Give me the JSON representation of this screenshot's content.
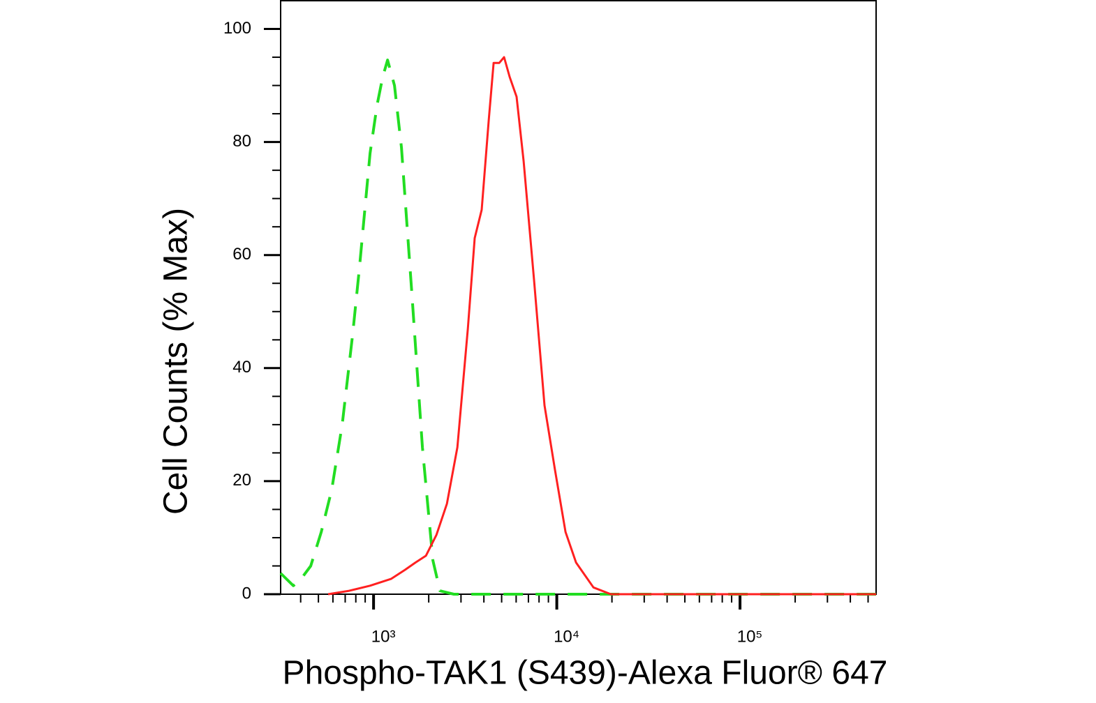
{
  "chart_data": {
    "type": "line",
    "xlabel": "Phospho-TAK1 (S439)-Alexa Fluor® 647",
    "ylabel": "Cell Counts (% Max)",
    "xscale": "log",
    "xlim": [
      311,
      553000
    ],
    "ylim": [
      0,
      105
    ],
    "xticks": [
      {
        "value": 1000,
        "label": "10³"
      },
      {
        "value": 10000,
        "label": "10⁴"
      },
      {
        "value": 100000,
        "label": "10⁵"
      }
    ],
    "xminorticks": [
      400,
      500,
      600,
      700,
      800,
      900,
      2000,
      3000,
      4000,
      5000,
      6000,
      7000,
      8000,
      9000,
      20000,
      30000,
      40000,
      50000,
      60000,
      70000,
      80000,
      90000,
      200000,
      300000,
      400000,
      500000
    ],
    "yticks": [
      0,
      20,
      40,
      60,
      80,
      100
    ],
    "yminorticks": [
      5,
      10,
      15,
      25,
      30,
      35,
      45,
      50,
      55,
      65,
      70,
      75,
      85,
      90,
      95
    ],
    "series": [
      {
        "color": "#22dd22",
        "dash": true,
        "x": [
          311,
          365,
          398,
          454,
          518,
          591,
          674,
          769,
          839,
          957,
          1045,
          1121,
          1192,
          1301,
          1420,
          1620,
          1848,
          2108,
          2302,
          2742,
          553000
        ],
        "values": [
          3.7,
          1.5,
          2.5,
          5,
          11,
          18.5,
          30,
          46,
          58,
          78,
          86.5,
          91.5,
          94.5,
          90,
          79,
          53,
          26,
          6,
          0.6,
          0,
          0
        ]
      },
      {
        "color": "#ff2020",
        "dash": false,
        "x": [
          565,
          736,
          957,
          1245,
          1484,
          1693,
          1931,
          2203,
          2513,
          2866,
          3270,
          3565,
          3891,
          4254,
          4519,
          4853,
          5155,
          5530,
          6034,
          6590,
          7516,
          8570,
          9776,
          11160,
          12740,
          15850,
          19720,
          553000
        ],
        "values": [
          0,
          0.6,
          1.5,
          2.7,
          4.3,
          5.6,
          6.8,
          10.5,
          16,
          26,
          47,
          63,
          68,
          84,
          94,
          94,
          95,
          91.5,
          88,
          76.6,
          55.6,
          33.4,
          22,
          11,
          5.6,
          1.2,
          0,
          0
        ]
      }
    ]
  }
}
